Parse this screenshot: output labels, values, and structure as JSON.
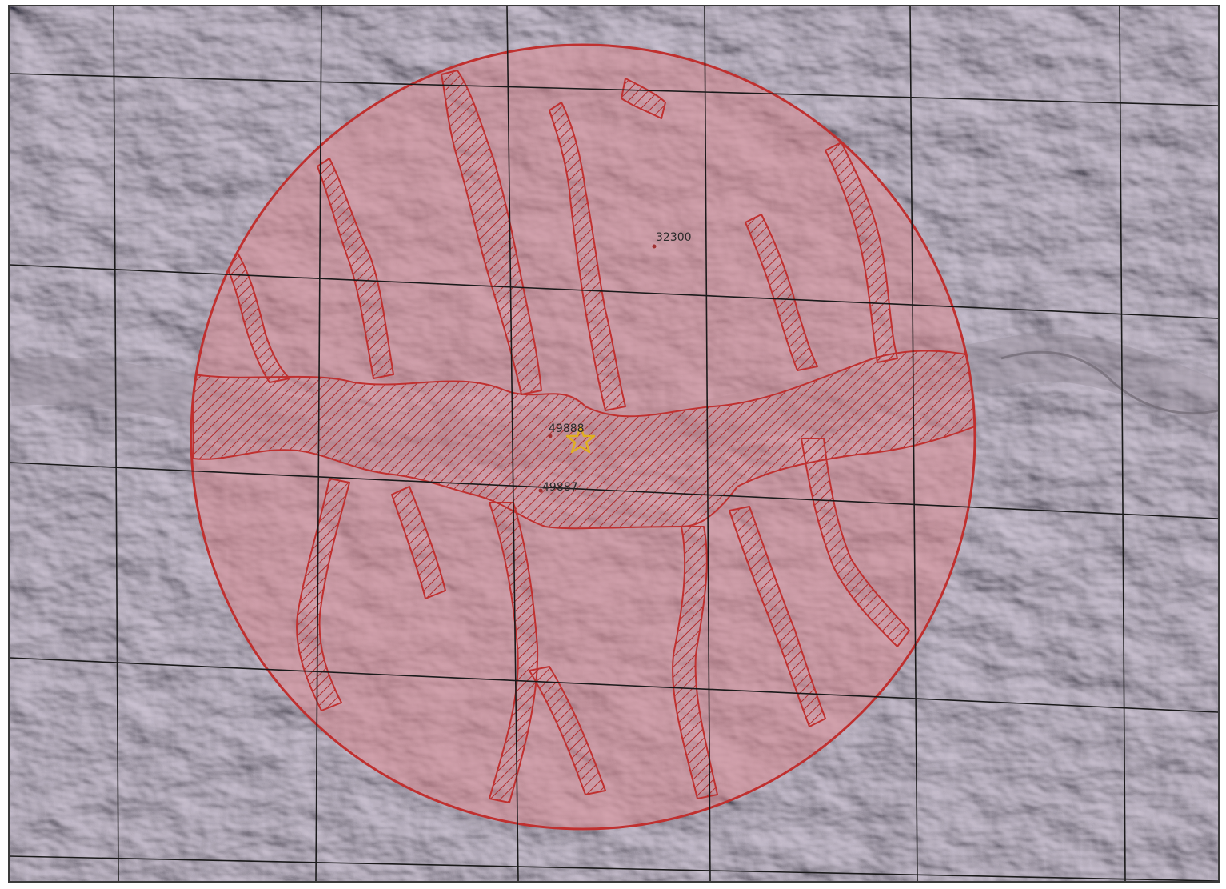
{
  "map": {
    "colors": {
      "terrain_base": "#a39aa4",
      "terrain_light": "#cfc9d0",
      "terrain_dark": "#4d4750",
      "buffer_fill": "#d9888f",
      "buffer_outline": "#c0302f",
      "hatch": "#b22a2a",
      "grid_line": "#1a1a1a",
      "site_marker": "#e0b020",
      "point_marker": "#a03030"
    },
    "site": {
      "label": "49888",
      "marker": "star-icon"
    },
    "points": [
      {
        "label": "32300"
      },
      {
        "label": "49887"
      }
    ]
  }
}
